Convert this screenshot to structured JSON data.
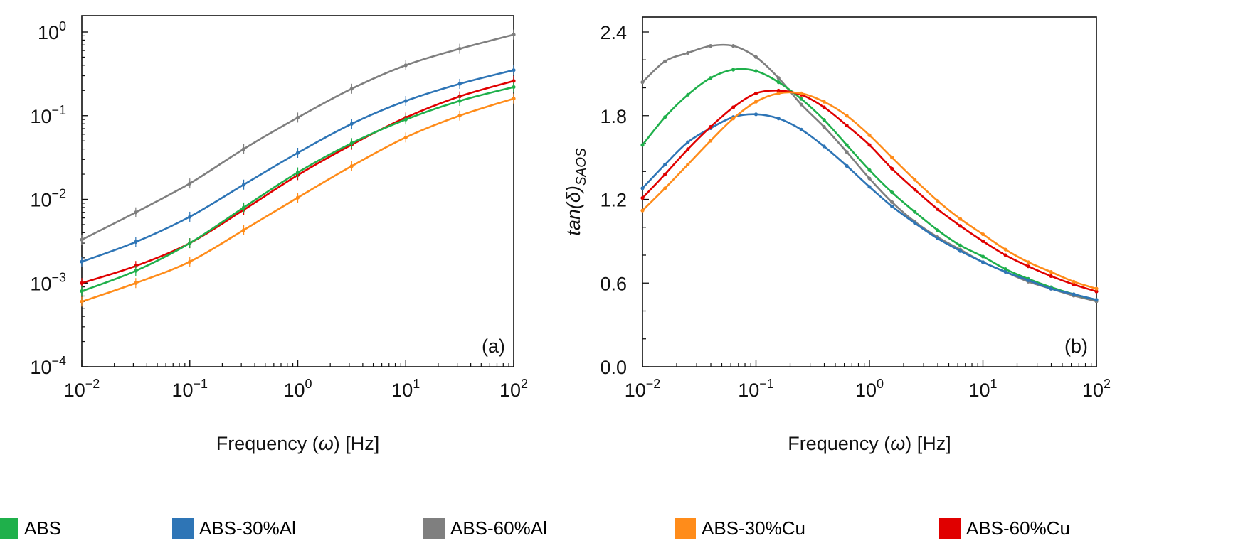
{
  "chart_data": [
    {
      "type": "line",
      "panel_label": "(a)",
      "xlabel": {
        "pre": "Frequency (",
        "sym": "ω",
        "post": ") [Hz]"
      },
      "ylabel": "",
      "x_scale": "log",
      "y_scale": "log",
      "xlim": [
        0.01,
        100
      ],
      "ylim": [
        0.0001,
        1.6
      ],
      "x_ticks": [
        {
          "base": "10",
          "exp": "−2"
        },
        {
          "base": "10",
          "exp": "−1"
        },
        {
          "base": "10",
          "exp": "0"
        },
        {
          "base": "10",
          "exp": "1"
        },
        {
          "base": "10",
          "exp": "2"
        }
      ],
      "y_ticks": [
        {
          "base": "10",
          "exp": "−4"
        },
        {
          "base": "10",
          "exp": "−3"
        },
        {
          "base": "10",
          "exp": "−2"
        },
        {
          "base": "10",
          "exp": "−1"
        },
        {
          "base": "10",
          "exp": "0"
        }
      ],
      "grid": false,
      "x": [
        0.01,
        0.0316,
        0.1,
        0.316,
        1,
        3.16,
        10,
        31.6,
        100
      ],
      "series": [
        {
          "name": "ABS-60%Al",
          "color": "#7f7f7f",
          "values": [
            0.0033,
            0.007,
            0.0155,
            0.04,
            0.095,
            0.21,
            0.4,
            0.63,
            0.93
          ]
        },
        {
          "name": "ABS-30%Al",
          "color": "#2e75b6",
          "values": [
            0.0018,
            0.0031,
            0.0062,
            0.015,
            0.036,
            0.08,
            0.15,
            0.24,
            0.35
          ]
        },
        {
          "name": "ABS-60%Cu",
          "color": "#e00000",
          "values": [
            0.001,
            0.0016,
            0.003,
            0.0075,
            0.0195,
            0.045,
            0.095,
            0.17,
            0.26
          ]
        },
        {
          "name": "ABS",
          "color": "#1fb04b",
          "values": [
            0.0008,
            0.0014,
            0.003,
            0.008,
            0.021,
            0.047,
            0.09,
            0.15,
            0.22
          ]
        },
        {
          "name": "ABS-30%Cu",
          "color": "#ff8c1a",
          "values": [
            0.0006,
            0.001,
            0.0018,
            0.0043,
            0.0105,
            0.025,
            0.055,
            0.1,
            0.16
          ]
        }
      ]
    },
    {
      "type": "line",
      "panel_label": "(b)",
      "xlabel": {
        "pre": "Frequency (",
        "sym": "ω",
        "post": ") [Hz]"
      },
      "ylabel": {
        "main": "tan(δ)",
        "sub": "SAOS"
      },
      "x_scale": "log",
      "y_scale": "linear",
      "xlim": [
        0.01,
        100
      ],
      "ylim": [
        0,
        2.5
      ],
      "x_ticks": [
        {
          "base": "10",
          "exp": "−2"
        },
        {
          "base": "10",
          "exp": "−1"
        },
        {
          "base": "10",
          "exp": "0"
        },
        {
          "base": "10",
          "exp": "1"
        },
        {
          "base": "10",
          "exp": "2"
        }
      ],
      "y_ticks": [
        "0.0",
        "0.6",
        "1.2",
        "1.8",
        "2.4"
      ],
      "grid": false,
      "x": [
        0.01,
        0.0158,
        0.0251,
        0.0398,
        0.0631,
        0.1,
        0.158,
        0.251,
        0.398,
        0.631,
        1,
        1.58,
        2.51,
        3.98,
        6.31,
        10,
        15.8,
        25.1,
        39.8,
        63.1,
        100
      ],
      "series": [
        {
          "name": "ABS-60%Al",
          "color": "#7f7f7f",
          "values": [
            2.04,
            2.19,
            2.25,
            2.3,
            2.3,
            2.22,
            2.07,
            1.88,
            1.72,
            1.54,
            1.35,
            1.18,
            1.04,
            0.93,
            0.84,
            0.75,
            0.68,
            0.61,
            0.56,
            0.51,
            0.47
          ]
        },
        {
          "name": "ABS",
          "color": "#1fb04b",
          "values": [
            1.59,
            1.79,
            1.95,
            2.07,
            2.13,
            2.12,
            2.04,
            1.92,
            1.77,
            1.59,
            1.41,
            1.25,
            1.11,
            0.98,
            0.87,
            0.79,
            0.7,
            0.63,
            0.57,
            0.52,
            0.48
          ]
        },
        {
          "name": "ABS-30%Al",
          "color": "#2e75b6",
          "values": [
            1.28,
            1.45,
            1.61,
            1.71,
            1.79,
            1.81,
            1.78,
            1.7,
            1.58,
            1.44,
            1.29,
            1.15,
            1.03,
            0.92,
            0.83,
            0.75,
            0.68,
            0.62,
            0.56,
            0.52,
            0.48
          ]
        },
        {
          "name": "ABS-60%Cu",
          "color": "#e00000",
          "values": [
            1.21,
            1.38,
            1.56,
            1.72,
            1.86,
            1.96,
            1.98,
            1.95,
            1.86,
            1.73,
            1.59,
            1.42,
            1.27,
            1.13,
            1.01,
            0.9,
            0.8,
            0.72,
            0.65,
            0.59,
            0.54
          ]
        },
        {
          "name": "ABS-30%Cu",
          "color": "#ff8c1a",
          "values": [
            1.12,
            1.28,
            1.45,
            1.62,
            1.78,
            1.9,
            1.96,
            1.96,
            1.9,
            1.8,
            1.66,
            1.5,
            1.34,
            1.19,
            1.06,
            0.95,
            0.84,
            0.75,
            0.68,
            0.61,
            0.56
          ]
        }
      ]
    }
  ],
  "legend": [
    {
      "label": "ABS",
      "color": "#1fb04b"
    },
    {
      "label": "ABS-30%Al",
      "color": "#2e75b6"
    },
    {
      "label": "ABS-60%Al",
      "color": "#7f7f7f"
    },
    {
      "label": "ABS-30%Cu",
      "color": "#ff8c1a"
    },
    {
      "label": "ABS-60%Cu",
      "color": "#e00000"
    }
  ]
}
